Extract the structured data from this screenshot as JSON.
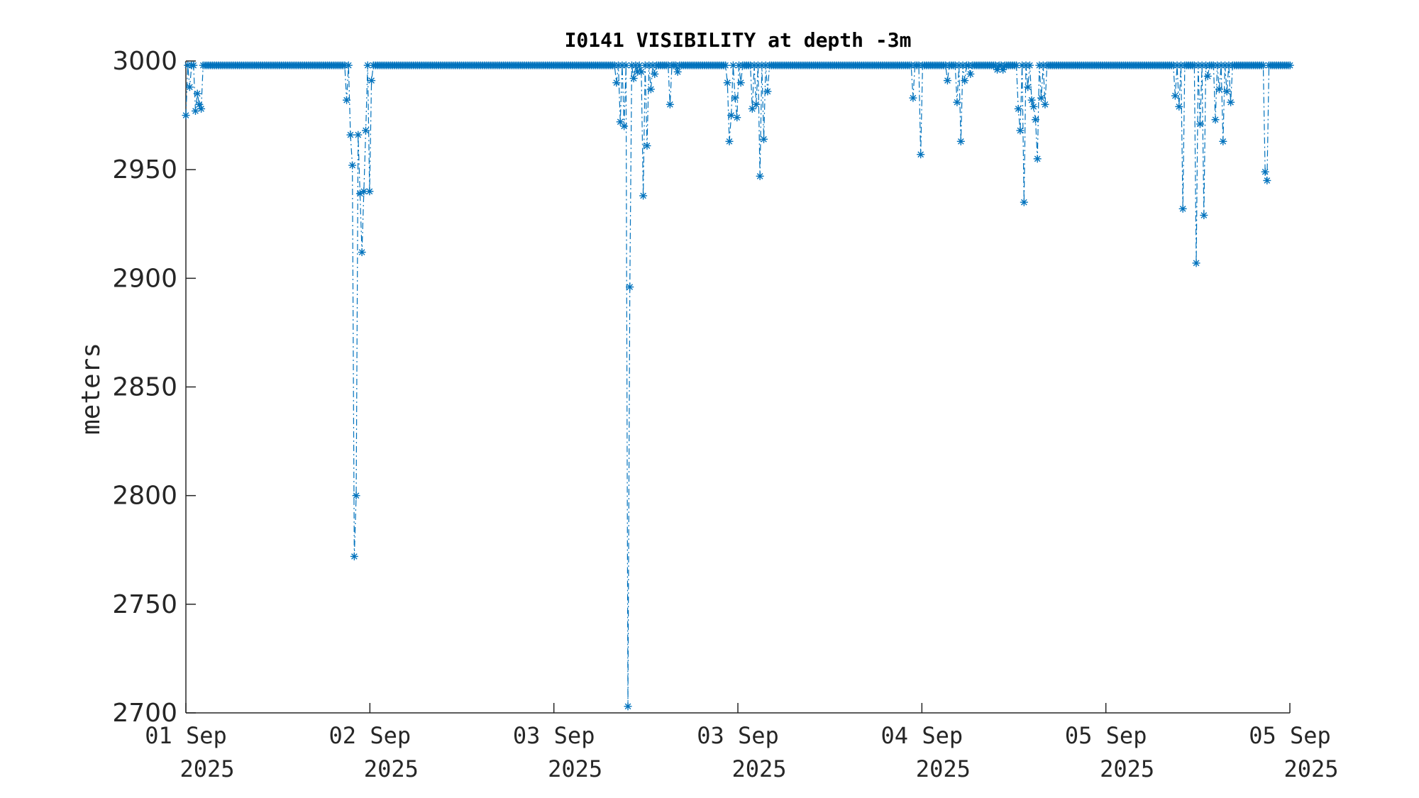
{
  "chart_data": {
    "type": "line",
    "title": "I0141 VISIBILITY at depth -3m",
    "ylabel": "meters",
    "xlabel": "",
    "ylim": [
      2700,
      3000
    ],
    "yticks": [
      2700,
      2750,
      2800,
      2850,
      2900,
      2950,
      3000
    ],
    "xlim_days": [
      0,
      6
    ],
    "xticks": [
      {
        "day": 0,
        "line1": "01 Sep",
        "line2": "2025"
      },
      {
        "day": 1,
        "line1": "02 Sep",
        "line2": "2025"
      },
      {
        "day": 2,
        "line1": "03 Sep",
        "line2": "2025"
      },
      {
        "day": 3,
        "line1": "03 Sep",
        "line2": "2025"
      },
      {
        "day": 4,
        "line1": "04 Sep",
        "line2": "2025"
      },
      {
        "day": 5,
        "line1": "05 Sep",
        "line2": "2025"
      },
      {
        "day": 6,
        "line1": "05 Sep",
        "line2": "2025"
      }
    ],
    "grid": false,
    "legend": "none",
    "baseline": 2998,
    "sample_interval_days": 0.0104,
    "line_style": "dash-dot",
    "marker": "asterisk",
    "series_color": "#0072BD",
    "dips": [
      [
        0.0,
        2975
      ],
      [
        0.02,
        2988
      ],
      [
        0.05,
        2977
      ],
      [
        0.06,
        2985
      ],
      [
        0.07,
        2980
      ],
      [
        0.08,
        2978
      ],
      [
        0.87,
        2982
      ],
      [
        0.89,
        2966
      ],
      [
        0.9,
        2952
      ],
      [
        0.91,
        2772
      ],
      [
        0.93,
        2800
      ],
      [
        0.94,
        2966
      ],
      [
        0.95,
        2939
      ],
      [
        0.96,
        2912
      ],
      [
        0.97,
        2940
      ],
      [
        0.98,
        2968
      ],
      [
        1.0,
        2940
      ],
      [
        1.01,
        2991
      ],
      [
        2.34,
        2990
      ],
      [
        2.36,
        2972
      ],
      [
        2.38,
        2970
      ],
      [
        2.4,
        2703
      ],
      [
        2.41,
        2896
      ],
      [
        2.43,
        2992
      ],
      [
        2.45,
        2995
      ],
      [
        2.47,
        2995
      ],
      [
        2.49,
        2938
      ],
      [
        2.51,
        2961
      ],
      [
        2.53,
        2987
      ],
      [
        2.55,
        2994
      ],
      [
        2.63,
        2980
      ],
      [
        2.67,
        2995
      ],
      [
        2.94,
        2990
      ],
      [
        2.95,
        2963
      ],
      [
        2.96,
        2975
      ],
      [
        2.98,
        2983
      ],
      [
        3.0,
        2974
      ],
      [
        3.02,
        2990
      ],
      [
        3.08,
        2978
      ],
      [
        3.1,
        2980
      ],
      [
        3.12,
        2947
      ],
      [
        3.14,
        2964
      ],
      [
        3.16,
        2986
      ],
      [
        3.95,
        2983
      ],
      [
        3.99,
        2957
      ],
      [
        4.14,
        2991
      ],
      [
        4.19,
        2981
      ],
      [
        4.21,
        2963
      ],
      [
        4.23,
        2991
      ],
      [
        4.26,
        2994
      ],
      [
        4.41,
        2996
      ],
      [
        4.44,
        2996
      ],
      [
        4.52,
        2978
      ],
      [
        4.53,
        2968
      ],
      [
        4.55,
        2972
      ],
      [
        4.56,
        2935
      ],
      [
        4.58,
        2988
      ],
      [
        4.6,
        2982
      ],
      [
        4.61,
        2979
      ],
      [
        4.62,
        2973
      ],
      [
        4.63,
        2955
      ],
      [
        4.65,
        2983
      ],
      [
        4.67,
        2980
      ],
      [
        5.38,
        2984
      ],
      [
        5.4,
        2979
      ],
      [
        5.42,
        2932
      ],
      [
        5.49,
        2907
      ],
      [
        5.51,
        2971
      ],
      [
        5.53,
        2929
      ],
      [
        5.55,
        2993
      ],
      [
        5.59,
        2973
      ],
      [
        5.62,
        2987
      ],
      [
        5.64,
        2963
      ],
      [
        5.66,
        2986
      ],
      [
        5.68,
        2981
      ],
      [
        5.87,
        2949
      ],
      [
        5.88,
        2945
      ]
    ]
  }
}
